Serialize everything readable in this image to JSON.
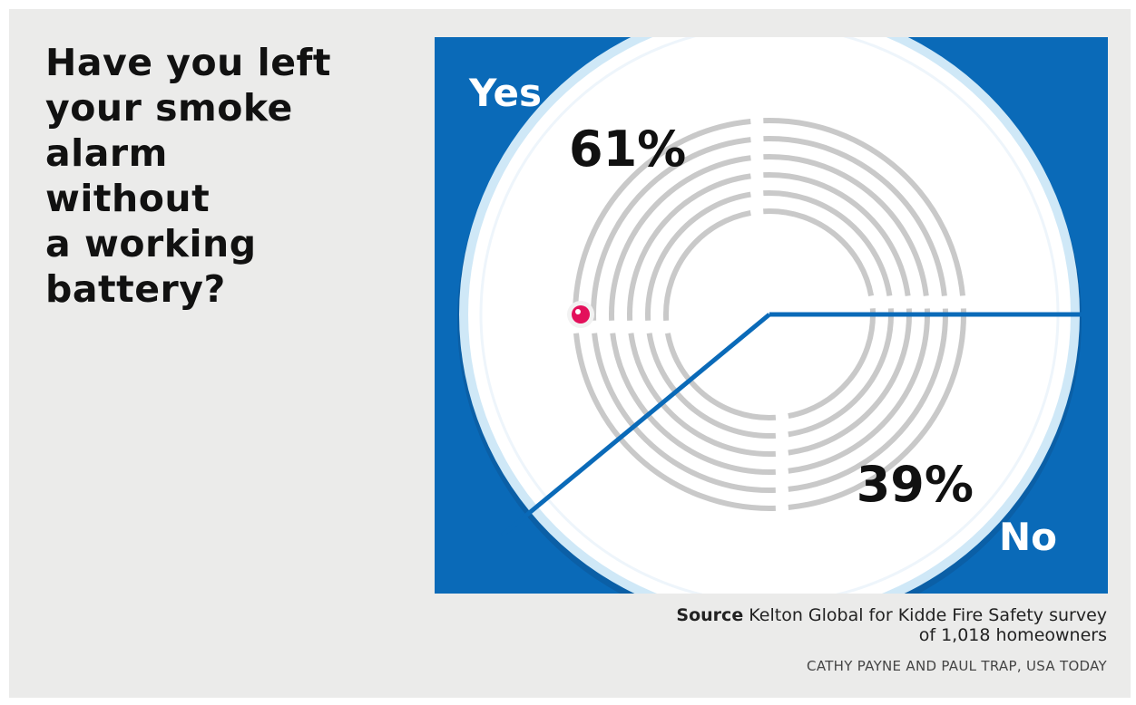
{
  "title": "Have you left\nyour smoke\nalarm\nwithout\na working\nbattery?",
  "source": {
    "label": "Source",
    "text": "Kelton Global for Kidde Fire Safety survey\nof 1,018 homeowners"
  },
  "credit": "CATHY PAYNE AND PAUL TRAP, USA TODAY",
  "colors": {
    "panel": "#0a6ab8",
    "divider": "#0a6ab8",
    "disc": "#ffffff",
    "rings": "#c9c9c9",
    "rim": "#cfe8f7",
    "dot": "#e3105b",
    "background": "#ebebea"
  },
  "chart_data": {
    "type": "pie",
    "title": "Have you left your smoke alarm without a working battery?",
    "slices": [
      {
        "label": "Yes",
        "value": 61,
        "value_label": "61%"
      },
      {
        "label": "No",
        "value": 39,
        "value_label": "39%"
      }
    ],
    "decoration": "smoke-alarm"
  }
}
